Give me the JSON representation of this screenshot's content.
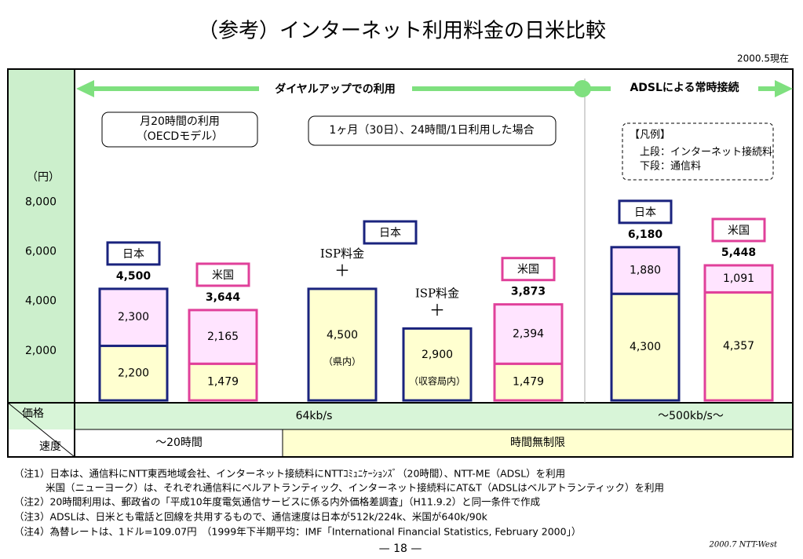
{
  "chart_data": {
    "type": "bar",
    "title": "（参考）インターネット利用料金の日米比較",
    "date": "2000.5現在",
    "y_unit": "（円）",
    "ylim": [
      0,
      13300
    ],
    "yticks": [
      {
        "value": 2000,
        "label": "2,000"
      },
      {
        "value": 4000,
        "label": "4,000"
      },
      {
        "value": 6000,
        "label": "6,000"
      },
      {
        "value": 8000,
        "label": "8,000"
      }
    ],
    "arrow_labels": [
      "ダイヤルアップでの利用",
      "ADSLによる常時接続"
    ],
    "boxes": [
      [
        "月20時間の利用",
        "（OECDモデル）"
      ],
      [
        "1ヶ月（30日）、24時間/1日利用した場合"
      ]
    ],
    "legend": [
      "【凡例】",
      "上段：インターネット接続料",
      "下段：通信料"
    ],
    "group_name": "日本",
    "bars": [
      {
        "name": "日本",
        "total": 4500,
        "total_label": "4,500",
        "segments": [
          {
            "value": 2200,
            "label": "2,200"
          },
          {
            "value": 2300,
            "label": "2,300"
          }
        ]
      },
      {
        "name": "米国",
        "total": 3644,
        "total_label": "3,644",
        "segments": [
          {
            "value": 1479,
            "label": "1,479"
          },
          {
            "value": 2165,
            "label": "2,165"
          }
        ]
      },
      {
        "above": [
          "ISP料金",
          "＋"
        ],
        "segments": [
          {
            "value": 4500,
            "label": "4,500",
            "note": "（県内）"
          }
        ]
      },
      {
        "above": [
          "ISP料金",
          "＋"
        ],
        "segments": [
          {
            "value": 2900,
            "label": "2,900",
            "note": "（収容局内）"
          }
        ]
      },
      {
        "name": "米国",
        "total": 3873,
        "total_label": "3,873",
        "segments": [
          {
            "value": 1479,
            "label": "1,479"
          },
          {
            "value": 2394,
            "label": "2,394"
          }
        ]
      },
      {
        "name": "日本",
        "total": 6180,
        "total_label": "6,180",
        "segments": [
          {
            "value": 4300,
            "label": "4,300"
          },
          {
            "value": 1880,
            "label": "1,880"
          }
        ]
      },
      {
        "name": "米国",
        "total": 5448,
        "total_label": "5,448",
        "segments": [
          {
            "value": 4357,
            "label": "4,357"
          },
          {
            "value": 1091,
            "label": "1,091"
          }
        ]
      }
    ],
    "table": {
      "header": [
        "価格",
        "速度"
      ],
      "price": [
        "64kb/s",
        "～500kb/s～"
      ],
      "speed": [
        "～20時間",
        "時間無制限"
      ]
    },
    "notes": [
      "（注1）日本は、通信料にNTT東西地域会社、インターネット接続料にNTTｺﾐｭﾆｹｰｼｮﾝｽﾞ（20時間）、NTT-ME（ADSL）を利用",
      "米国（ニューヨーク）は、それぞれ通信料にベルアトランティック、インターネット接続料にAT&T（ADSLはベルアトランティック）を利用",
      "（注2）20時間利用は、郵政省の「平成10年度電気通信サービスに係る内外価格差調査」（H11.9.2）と同一条件で作成",
      "（注3）ADSLは、日米とも電話と回線を共用するもので、通信速度は日本が512k/224k、米国が640k/90k",
      "（注4）為替レートは、1ドル=109.07円　（1999年下半期平均：IMF「International Financial Statistics, February 2000」）"
    ],
    "page": "— 18 —",
    "footer": "2000.7 NTT-West"
  }
}
